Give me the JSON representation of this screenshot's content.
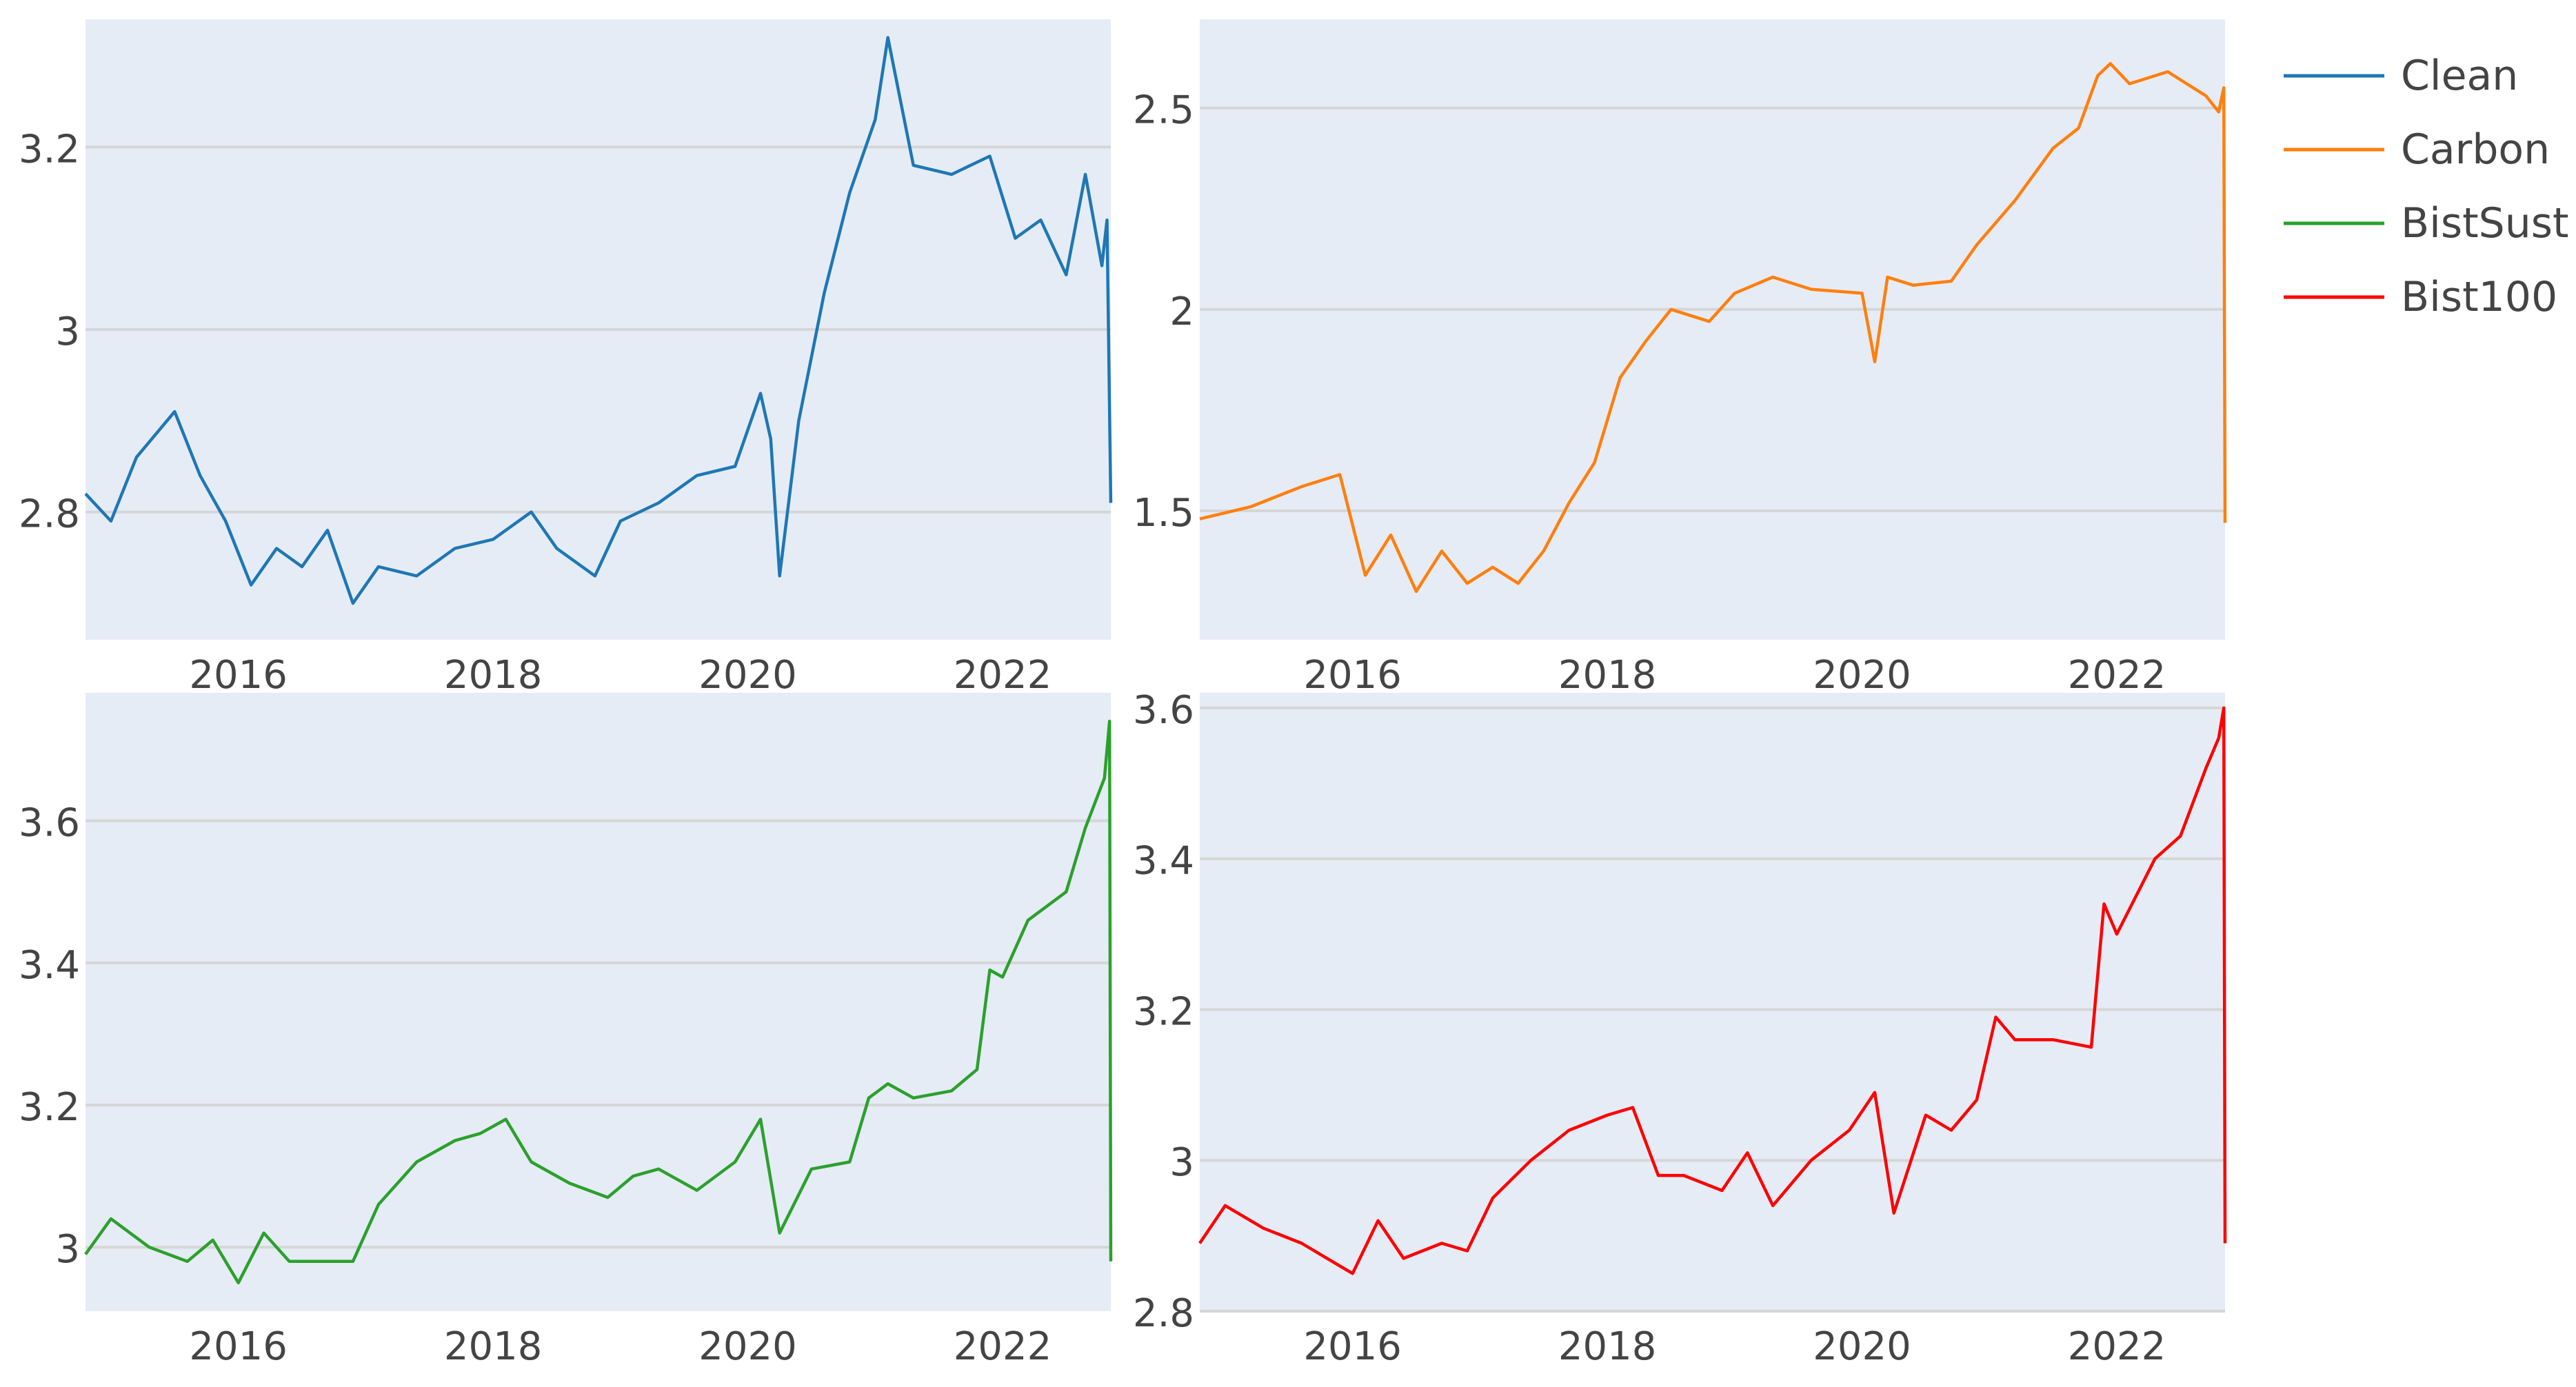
{
  "chart_data": {
    "type": "line",
    "layout": "2x2 subplots",
    "grid": true,
    "legend_position": "top-right",
    "legend": [
      {
        "name": "Clean",
        "color": "#1f77b4"
      },
      {
        "name": "Carbon",
        "color": "#ff7f0e"
      },
      {
        "name": "BistSust",
        "color": "#2ca02c"
      },
      {
        "name": "Bist100",
        "color": "#ff0000"
      }
    ],
    "subplots": [
      {
        "series": "Clean",
        "color": "#1f77b4",
        "xlim": [
          2014.8,
          2022.85
        ],
        "ylim": [
          2.66,
          3.34
        ],
        "x_ticks": [
          2016,
          2018,
          2020,
          2022
        ],
        "y_ticks": [
          2.8,
          3,
          3.2
        ],
        "y_tick_labels": [
          "2.8",
          "3",
          "3.2"
        ],
        "x": [
          2014.8,
          2015.0,
          2015.2,
          2015.5,
          2015.7,
          2015.9,
          2016.1,
          2016.3,
          2016.5,
          2016.7,
          2016.9,
          2017.1,
          2017.4,
          2017.7,
          2018.0,
          2018.3,
          2018.5,
          2018.8,
          2019.0,
          2019.3,
          2019.6,
          2019.9,
          2020.1,
          2020.18,
          2020.25,
          2020.4,
          2020.6,
          2020.8,
          2021.0,
          2021.1,
          2021.3,
          2021.6,
          2021.9,
          2022.1,
          2022.3,
          2022.5,
          2022.65,
          2022.78,
          2022.82,
          2022.85
        ],
        "values": [
          2.82,
          2.79,
          2.86,
          2.91,
          2.84,
          2.79,
          2.72,
          2.76,
          2.74,
          2.78,
          2.7,
          2.74,
          2.73,
          2.76,
          2.77,
          2.8,
          2.76,
          2.73,
          2.79,
          2.81,
          2.84,
          2.85,
          2.93,
          2.88,
          2.73,
          2.9,
          3.04,
          3.15,
          3.23,
          3.32,
          3.18,
          3.17,
          3.19,
          3.1,
          3.12,
          3.06,
          3.17,
          3.07,
          3.12,
          2.81
        ]
      },
      {
        "series": "Carbon",
        "color": "#ff7f0e",
        "xlim": [
          2014.8,
          2022.85
        ],
        "ylim": [
          1.18,
          2.72
        ],
        "x_ticks": [
          2016,
          2018,
          2020,
          2022
        ],
        "y_ticks": [
          1.5,
          2,
          2.5
        ],
        "y_tick_labels": [
          "1.5",
          "2",
          "2.5"
        ],
        "x": [
          2014.8,
          2015.2,
          2015.6,
          2015.9,
          2016.1,
          2016.3,
          2016.5,
          2016.7,
          2016.9,
          2017.1,
          2017.3,
          2017.5,
          2017.7,
          2017.9,
          2018.1,
          2018.3,
          2018.5,
          2018.8,
          2019.0,
          2019.3,
          2019.6,
          2020.0,
          2020.1,
          2020.2,
          2020.4,
          2020.7,
          2020.9,
          2021.2,
          2021.5,
          2021.7,
          2021.85,
          2021.95,
          2022.1,
          2022.4,
          2022.6,
          2022.7,
          2022.8,
          2022.84,
          2022.85
        ],
        "values": [
          1.48,
          1.51,
          1.56,
          1.59,
          1.34,
          1.44,
          1.3,
          1.4,
          1.32,
          1.36,
          1.32,
          1.4,
          1.52,
          1.62,
          1.83,
          1.92,
          2.0,
          1.97,
          2.04,
          2.08,
          2.05,
          2.04,
          1.87,
          2.08,
          2.06,
          2.07,
          2.16,
          2.27,
          2.4,
          2.45,
          2.58,
          2.61,
          2.56,
          2.59,
          2.55,
          2.53,
          2.49,
          2.55,
          1.47
        ]
      },
      {
        "series": "BistSust",
        "color": "#2ca02c",
        "xlim": [
          2014.8,
          2022.85
        ],
        "ylim": [
          2.91,
          3.78
        ],
        "x_ticks": [
          2016,
          2018,
          2020,
          2022
        ],
        "y_ticks": [
          3,
          3.2,
          3.4,
          3.6
        ],
        "y_tick_labels": [
          "3",
          "3.2",
          "3.4",
          "3.6"
        ],
        "x": [
          2014.8,
          2015.0,
          2015.3,
          2015.6,
          2015.8,
          2016.0,
          2016.2,
          2016.4,
          2016.7,
          2016.9,
          2017.1,
          2017.4,
          2017.7,
          2017.9,
          2018.1,
          2018.3,
          2018.6,
          2018.9,
          2019.1,
          2019.3,
          2019.6,
          2019.9,
          2020.1,
          2020.25,
          2020.5,
          2020.8,
          2020.95,
          2021.1,
          2021.3,
          2021.6,
          2021.8,
          2021.9,
          2022.0,
          2022.2,
          2022.5,
          2022.65,
          2022.8,
          2022.84,
          2022.85
        ],
        "values": [
          2.99,
          3.04,
          3.0,
          2.98,
          3.01,
          2.95,
          3.02,
          2.98,
          2.98,
          2.98,
          3.06,
          3.12,
          3.15,
          3.16,
          3.18,
          3.12,
          3.09,
          3.07,
          3.1,
          3.11,
          3.08,
          3.12,
          3.18,
          3.02,
          3.11,
          3.12,
          3.21,
          3.23,
          3.21,
          3.22,
          3.25,
          3.39,
          3.38,
          3.46,
          3.5,
          3.59,
          3.66,
          3.74,
          2.98
        ]
      },
      {
        "series": "Bist100",
        "color": "#ff0000",
        "xlim": [
          2014.8,
          2022.85
        ],
        "ylim": [
          2.8,
          3.62
        ],
        "x_ticks": [
          2016,
          2018,
          2020,
          2022
        ],
        "y_ticks": [
          2.8,
          3,
          3.2,
          3.4,
          3.6
        ],
        "y_tick_labels": [
          "2.8",
          "3",
          "3.2",
          "3.4",
          "3.6"
        ],
        "x": [
          2014.8,
          2015.0,
          2015.3,
          2015.6,
          2015.9,
          2016.0,
          2016.2,
          2016.4,
          2016.7,
          2016.9,
          2017.1,
          2017.4,
          2017.7,
          2018.0,
          2018.2,
          2018.4,
          2018.6,
          2018.9,
          2019.1,
          2019.3,
          2019.6,
          2019.9,
          2020.1,
          2020.25,
          2020.5,
          2020.7,
          2020.9,
          2021.05,
          2021.2,
          2021.5,
          2021.8,
          2021.9,
          2022.0,
          2022.3,
          2022.5,
          2022.7,
          2022.8,
          2022.84,
          2022.85
        ],
        "values": [
          2.89,
          2.94,
          2.91,
          2.89,
          2.86,
          2.85,
          2.92,
          2.87,
          2.89,
          2.88,
          2.95,
          3.0,
          3.04,
          3.06,
          3.07,
          2.98,
          2.98,
          2.96,
          3.01,
          2.94,
          3.0,
          3.04,
          3.09,
          2.93,
          3.06,
          3.04,
          3.08,
          3.19,
          3.16,
          3.16,
          3.15,
          3.34,
          3.3,
          3.4,
          3.43,
          3.52,
          3.56,
          3.6,
          2.89
        ]
      }
    ]
  }
}
